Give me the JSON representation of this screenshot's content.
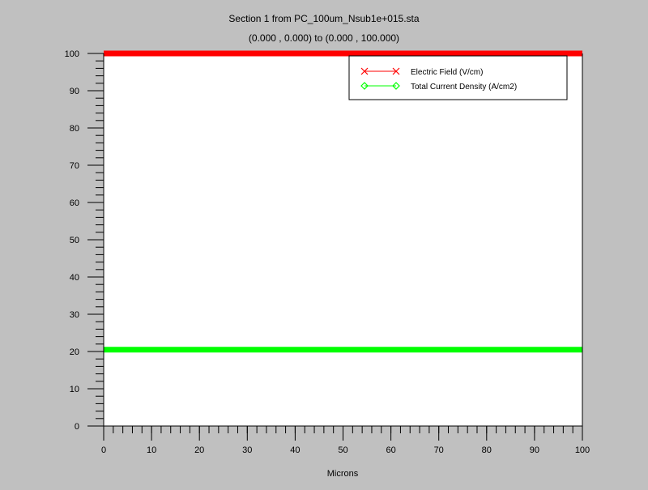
{
  "chart_data": {
    "type": "line",
    "title": "Section 1 from PC_100um_Nsub1e+015.sta",
    "subtitle": "(0.000 , 0.000) to (0.000 , 100.000)",
    "xlabel": "Microns",
    "ylabel": "",
    "xlim": [
      0,
      100
    ],
    "ylim": [
      0,
      100
    ],
    "x_ticks": [
      0,
      10,
      20,
      30,
      40,
      50,
      60,
      70,
      80,
      90,
      100
    ],
    "y_ticks": [
      0,
      10,
      20,
      30,
      40,
      50,
      60,
      70,
      80,
      90,
      100
    ],
    "grid": false,
    "legend_position": "top-right",
    "series": [
      {
        "name": "Electric Field (V/cm)",
        "color": "#ff0000",
        "marker": "x",
        "x": [
          0,
          100
        ],
        "y": [
          100,
          100
        ]
      },
      {
        "name": "Total Current Density (A/cm2)",
        "color": "#00ff00",
        "marker": "diamond",
        "x": [
          0,
          100
        ],
        "y": [
          20.5,
          20.5
        ]
      }
    ]
  },
  "colors": {
    "background": "#c0c0c0",
    "plot_area": "#ffffff",
    "axis": "#000000"
  }
}
